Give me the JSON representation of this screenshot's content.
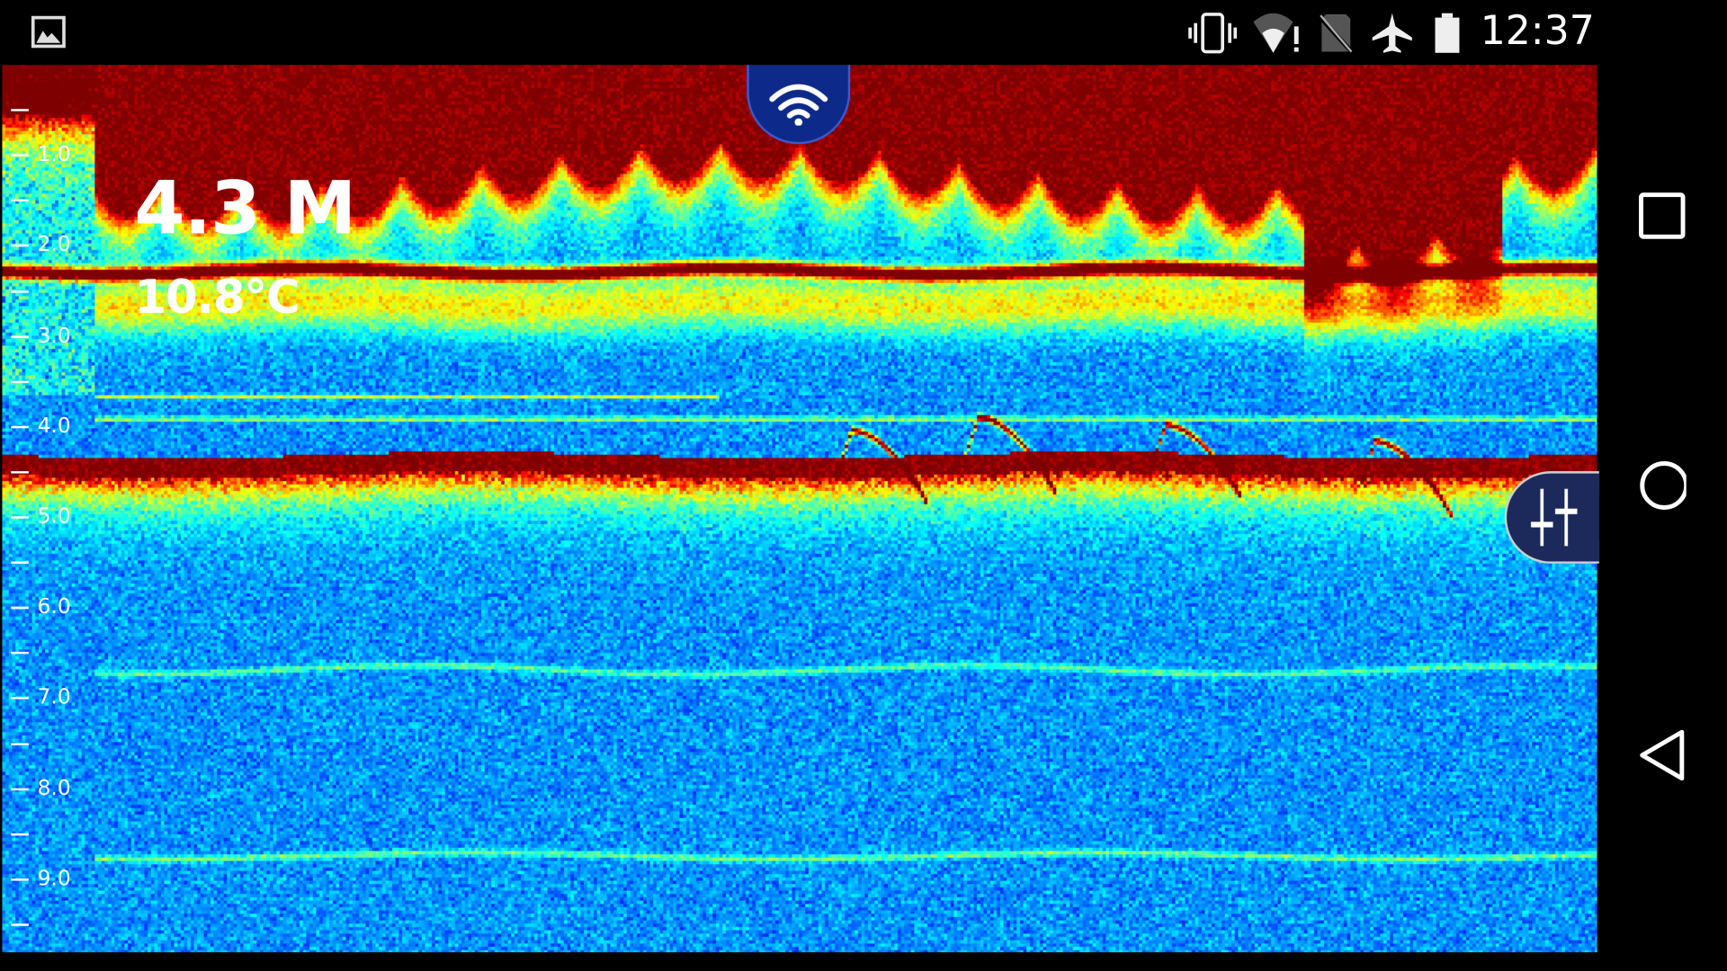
{
  "status_bar": {
    "time": "12:37",
    "icons": [
      "image-notification-icon",
      "vibrate-icon",
      "wifi-no-internet-icon",
      "no-sim-icon",
      "airplane-mode-icon",
      "battery-icon"
    ]
  },
  "sonar": {
    "depth_reading": "4.3 M",
    "water_temperature": "10.8°C",
    "depth_scale_labels": [
      "1.0",
      "2.0",
      "3.0",
      "4.0",
      "5.0",
      "6.0",
      "7.0",
      "8.0",
      "9.0"
    ],
    "colormap": [
      "#0000ff",
      "#00a0ff",
      "#00ffc0",
      "#ffff00",
      "#ff0000"
    ],
    "connection_icon": "wifi-icon",
    "settings_icon": "sliders-icon"
  },
  "nav_bar": {
    "buttons": [
      "recents-icon",
      "home-icon",
      "back-icon"
    ]
  }
}
